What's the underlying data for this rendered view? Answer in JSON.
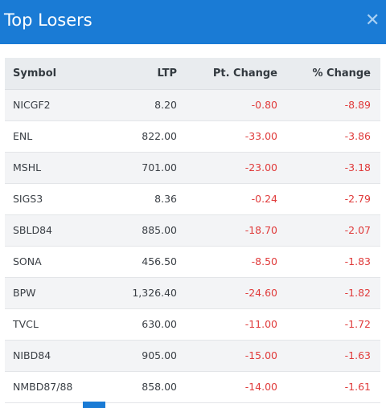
{
  "modal": {
    "title": "Top Losers",
    "close_icon": "close-icon"
  },
  "table": {
    "headers": {
      "symbol": "Symbol",
      "ltp": "LTP",
      "pt_change": "Pt. Change",
      "pct_change": "% Change"
    },
    "rows": [
      {
        "symbol": "NICGF2",
        "ltp": "8.20",
        "pt_change": "-0.80",
        "pct_change": "-8.89"
      },
      {
        "symbol": "ENL",
        "ltp": "822.00",
        "pt_change": "-33.00",
        "pct_change": "-3.86"
      },
      {
        "symbol": "MSHL",
        "ltp": "701.00",
        "pt_change": "-23.00",
        "pct_change": "-3.18"
      },
      {
        "symbol": "SIGS3",
        "ltp": "8.36",
        "pt_change": "-0.24",
        "pct_change": "-2.79"
      },
      {
        "symbol": "SBLD84",
        "ltp": "885.00",
        "pt_change": "-18.70",
        "pct_change": "-2.07"
      },
      {
        "symbol": "SONA",
        "ltp": "456.50",
        "pt_change": "-8.50",
        "pct_change": "-1.83"
      },
      {
        "symbol": "BPW",
        "ltp": "1,326.40",
        "pt_change": "-24.60",
        "pct_change": "-1.82"
      },
      {
        "symbol": "TVCL",
        "ltp": "630.00",
        "pt_change": "-11.00",
        "pct_change": "-1.72"
      },
      {
        "symbol": "NIBD84",
        "ltp": "905.00",
        "pt_change": "-15.00",
        "pct_change": "-1.63"
      },
      {
        "symbol": "NMBD87/88",
        "ltp": "858.00",
        "pt_change": "-14.00",
        "pct_change": "-1.61"
      }
    ]
  },
  "colors": {
    "header_bg": "#1a7bd5",
    "negative": "#e03b3b"
  }
}
